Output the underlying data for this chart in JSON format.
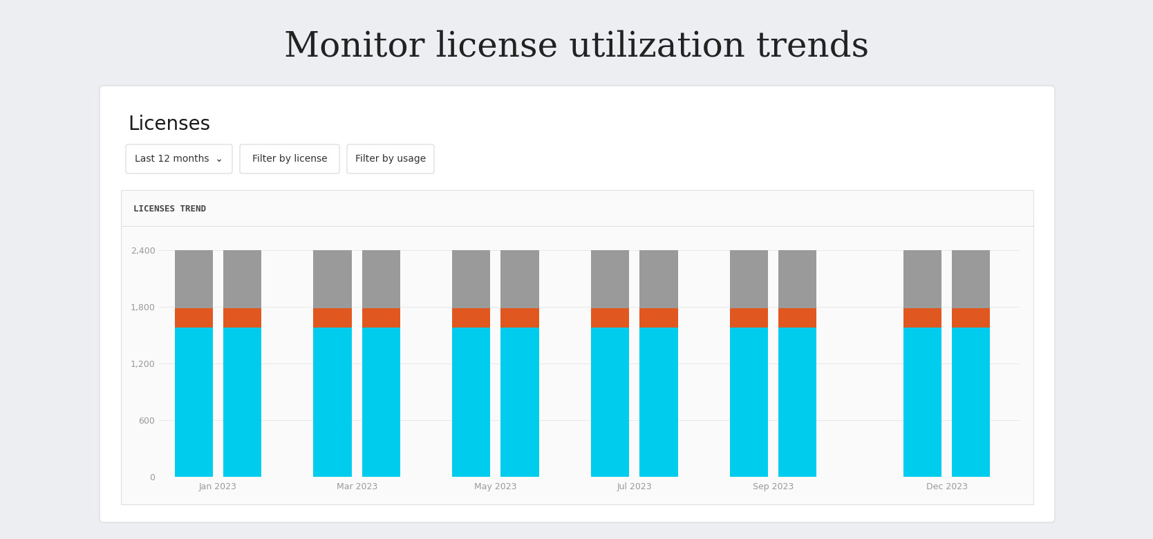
{
  "title": "Monitor license utilization trends",
  "card_title": "Licenses",
  "chart_title": "LICENSES TREND",
  "btn1": "Last 12 months  ⌄",
  "btn2": "Filter by license",
  "btn3": "Filter by usage",
  "month_labels": [
    "Jan 2023",
    "Mar 2023",
    "May 2023",
    "Jul 2023",
    "Sep 2023",
    "Dec 2023"
  ],
  "n_bars": 12,
  "cyan_values": [
    1580,
    1580,
    1580,
    1580,
    1580,
    1580,
    1580,
    1580,
    1580,
    1580,
    1580,
    1580
  ],
  "orange_values": [
    210,
    210,
    210,
    210,
    210,
    210,
    210,
    210,
    210,
    210,
    210,
    210
  ],
  "gray_values": [
    610,
    610,
    610,
    610,
    610,
    610,
    610,
    610,
    610,
    610,
    610,
    610
  ],
  "yticks": [
    0,
    600,
    1200,
    1800,
    2400
  ],
  "ylim": [
    0,
    2550
  ],
  "bar_width": 0.55,
  "color_cyan": "#00CCEE",
  "color_orange": "#E05820",
  "color_gray": "#9A9A9A",
  "bg_color": "#ECEEF2",
  "card_bg": "#FFFFFF",
  "chart_bg": "#FAFAFA",
  "title_color": "#222222",
  "card_title_color": "#1A1A1A",
  "chart_title_color": "#444444",
  "tick_color": "#999999",
  "grid_color": "#E5E5E5",
  "border_color": "#D8D8D8",
  "title_fontsize": 36,
  "card_title_fontsize": 20,
  "chart_title_fontsize": 9,
  "tick_fontsize": 9,
  "btn_fontsize": 10
}
